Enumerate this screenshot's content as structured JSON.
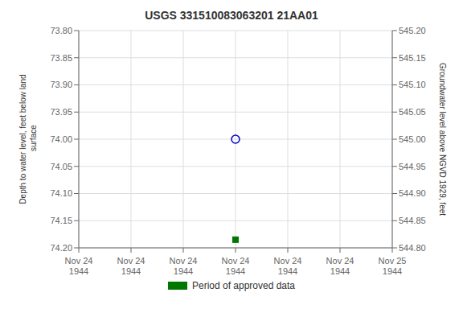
{
  "chart_data": {
    "type": "scatter",
    "title": "USGS 331510083063201 21AA01",
    "y_label": "Depth to water level, feet below land\n surface",
    "y2_label": "Groundwater level above NGVD 1929, feet",
    "categories": [
      "Nov 24\n1944",
      "Nov 24\n1944",
      "Nov 24\n1944",
      "Nov 24\n1944",
      "Nov 24\n1944",
      "Nov 24\n1944",
      "Nov 25\n1944"
    ],
    "series": [
      {
        "color": "#0000cc",
        "marker": "circle",
        "values": [
          null,
          null,
          null,
          74.0,
          null,
          null,
          null
        ]
      },
      {
        "name": "Period of approved data",
        "color": "#007700",
        "marker": "square",
        "values": [
          null,
          null,
          null,
          74.185,
          null,
          null,
          null
        ]
      }
    ],
    "ylim": [
      74.2,
      73.8
    ],
    "yticks": [
      {
        "value": 73.8,
        "label": "73.80"
      },
      {
        "value": 73.85,
        "label": "73.85"
      },
      {
        "value": 73.9,
        "label": "73.90"
      },
      {
        "value": 73.95,
        "label": "73.95"
      },
      {
        "value": 74.0,
        "label": "74.00"
      },
      {
        "value": 74.05,
        "label": "74.05"
      },
      {
        "value": 74.1,
        "label": "74.10"
      },
      {
        "value": 74.15,
        "label": "74.15"
      },
      {
        "value": 74.2,
        "label": "74.20"
      }
    ],
    "y2lim": [
      544.8,
      545.2
    ],
    "y2ticks": [
      {
        "value": 545.2,
        "label": "545.20"
      },
      {
        "value": 545.15,
        "label": "545.15"
      },
      {
        "value": 545.1,
        "label": "545.10"
      },
      {
        "value": 545.05,
        "label": "545.05"
      },
      {
        "value": 545.0,
        "label": "545.00"
      },
      {
        "value": 544.95,
        "label": "544.95"
      },
      {
        "value": 544.9,
        "label": "544.90"
      },
      {
        "value": 544.85,
        "label": "544.85"
      },
      {
        "value": 544.8,
        "label": "544.80"
      }
    ],
    "grid": true,
    "legend": "bottom"
  }
}
